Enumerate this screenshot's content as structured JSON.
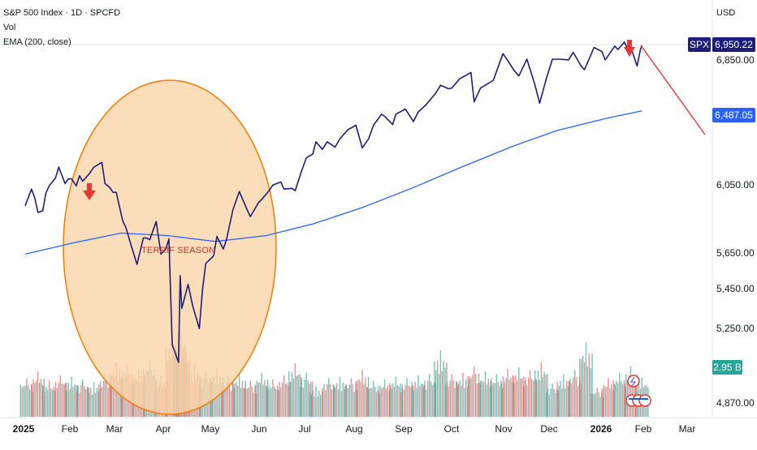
{
  "header": {
    "title": "S&P 500 Index · 1D · SPCFD",
    "vol_label": "Vol",
    "ema_label": "EMA (200, close)"
  },
  "currency": "USD",
  "badges": {
    "symbol": "SPX",
    "price": "6,950.22",
    "ema": "6,487.05",
    "volume": "2.95 B"
  },
  "colors": {
    "price_line": "#1c1e7a",
    "ema_line": "#2962ff",
    "vol_up": "#26a69a",
    "vol_down": "#ef5350",
    "circle_fill": "#fbd3a6",
    "circle_stroke": "#f57c00",
    "arrow": "#e53935",
    "projection": "#e53935"
  },
  "annotation": "TERRIF SEASON",
  "chart_data": {
    "type": "line",
    "title": "S&P 500 Index · 1D · SPCFD",
    "y_axis_ticks": [
      "6,850.00",
      "6,050.00",
      "5,650.00",
      "5,450.00",
      "5,250.00",
      "4,870.00"
    ],
    "y_axis_scale": "log",
    "x_axis_ticks": [
      "2025",
      "Feb",
      "Mar",
      "Apr",
      "May",
      "Jun",
      "Jul",
      "Aug",
      "Sep",
      "Oct",
      "Nov",
      "Dec",
      "2026",
      "Feb",
      "Mar"
    ],
    "series": [
      {
        "name": "SPX",
        "points": [
          [
            "2025-01-02",
            5870
          ],
          [
            "2025-01-06",
            5975
          ],
          [
            "2025-01-08",
            5920
          ],
          [
            "2025-01-10",
            5830
          ],
          [
            "2025-01-13",
            5840
          ],
          [
            "2025-01-15",
            5950
          ],
          [
            "2025-01-17",
            5995
          ],
          [
            "2025-01-21",
            6045
          ],
          [
            "2025-01-23",
            6115
          ],
          [
            "2025-01-27",
            6010
          ],
          [
            "2025-01-29",
            6040
          ],
          [
            "2025-01-31",
            6040
          ],
          [
            "2025-02-03",
            5995
          ],
          [
            "2025-02-05",
            6060
          ],
          [
            "2025-02-07",
            6025
          ],
          [
            "2025-02-11",
            6070
          ],
          [
            "2025-02-14",
            6115
          ],
          [
            "2025-02-19",
            6145
          ],
          [
            "2025-02-21",
            6010
          ],
          [
            "2025-02-24",
            5985
          ],
          [
            "2025-02-26",
            5955
          ],
          [
            "2025-02-28",
            5955
          ],
          [
            "2025-03-04",
            5780
          ],
          [
            "2025-03-06",
            5740
          ],
          [
            "2025-03-10",
            5610
          ],
          [
            "2025-03-13",
            5520
          ],
          [
            "2025-03-17",
            5675
          ],
          [
            "2025-03-19",
            5675
          ],
          [
            "2025-03-21",
            5665
          ],
          [
            "2025-03-25",
            5775
          ],
          [
            "2025-03-28",
            5580
          ],
          [
            "2025-03-31",
            5610
          ],
          [
            "2025-04-02",
            5670
          ],
          [
            "2025-04-04",
            5075
          ],
          [
            "2025-04-08",
            4980
          ],
          [
            "2025-04-09",
            5455
          ],
          [
            "2025-04-10",
            5270
          ],
          [
            "2025-04-14",
            5405
          ],
          [
            "2025-04-17",
            5280
          ],
          [
            "2025-04-21",
            5160
          ],
          [
            "2025-04-23",
            5375
          ],
          [
            "2025-04-25",
            5525
          ],
          [
            "2025-04-30",
            5570
          ],
          [
            "2025-05-02",
            5685
          ],
          [
            "2025-05-06",
            5610
          ],
          [
            "2025-05-08",
            5665
          ],
          [
            "2025-05-12",
            5845
          ],
          [
            "2025-05-16",
            5960
          ],
          [
            "2025-05-21",
            5845
          ],
          [
            "2025-05-23",
            5805
          ],
          [
            "2025-05-28",
            5890
          ],
          [
            "2025-05-30",
            5910
          ],
          [
            "2025-06-04",
            5970
          ],
          [
            "2025-06-06",
            6000
          ],
          [
            "2025-06-11",
            6020
          ],
          [
            "2025-06-13",
            5975
          ],
          [
            "2025-06-18",
            5980
          ],
          [
            "2025-06-20",
            5965
          ],
          [
            "2025-06-24",
            6090
          ],
          [
            "2025-06-27",
            6175
          ],
          [
            "2025-07-01",
            6200
          ],
          [
            "2025-07-03",
            6280
          ],
          [
            "2025-07-07",
            6230
          ],
          [
            "2025-07-10",
            6280
          ],
          [
            "2025-07-15",
            6245
          ],
          [
            "2025-07-18",
            6300
          ],
          [
            "2025-07-23",
            6360
          ],
          [
            "2025-07-28",
            6390
          ],
          [
            "2025-08-01",
            6240
          ],
          [
            "2025-08-05",
            6300
          ],
          [
            "2025-08-08",
            6390
          ],
          [
            "2025-08-13",
            6465
          ],
          [
            "2025-08-15",
            6450
          ],
          [
            "2025-08-20",
            6395
          ],
          [
            "2025-08-22",
            6465
          ],
          [
            "2025-08-28",
            6500
          ],
          [
            "2025-09-02",
            6415
          ],
          [
            "2025-09-05",
            6480
          ],
          [
            "2025-09-10",
            6530
          ],
          [
            "2025-09-16",
            6610
          ],
          [
            "2025-09-19",
            6665
          ],
          [
            "2025-09-24",
            6640
          ],
          [
            "2025-09-26",
            6645
          ],
          [
            "2025-10-01",
            6710
          ],
          [
            "2025-10-08",
            6755
          ],
          [
            "2025-10-10",
            6550
          ],
          [
            "2025-10-14",
            6645
          ],
          [
            "2025-10-17",
            6665
          ],
          [
            "2025-10-22",
            6700
          ],
          [
            "2025-10-28",
            6890
          ],
          [
            "2025-10-31",
            6840
          ],
          [
            "2025-11-04",
            6770
          ],
          [
            "2025-11-07",
            6730
          ],
          [
            "2025-11-12",
            6850
          ],
          [
            "2025-11-17",
            6670
          ],
          [
            "2025-11-20",
            6540
          ],
          [
            "2025-11-24",
            6705
          ],
          [
            "2025-11-28",
            6850
          ],
          [
            "2025-12-03",
            6850
          ],
          [
            "2025-12-08",
            6845
          ],
          [
            "2025-12-11",
            6900
          ],
          [
            "2025-12-16",
            6800
          ],
          [
            "2025-12-18",
            6775
          ],
          [
            "2025-12-22",
            6880
          ],
          [
            "2025-12-24",
            6935
          ],
          [
            "2025-12-29",
            6905
          ],
          [
            "2025-12-31",
            6845
          ],
          [
            "2026-01-06",
            6945
          ],
          [
            "2026-01-08",
            6920
          ],
          [
            "2026-01-12",
            6975
          ],
          [
            "2026-01-14",
            6925
          ],
          [
            "2026-01-16",
            6940
          ],
          [
            "2026-01-20",
            6800
          ],
          [
            "2026-01-22",
            6915
          ],
          [
            "2026-01-23",
            6950.22
          ]
        ]
      },
      {
        "name": "EMA (200, close)",
        "points": [
          [
            "2025-01-02",
            5580
          ],
          [
            "2025-02-03",
            5650
          ],
          [
            "2025-03-03",
            5705
          ],
          [
            "2025-04-01",
            5690
          ],
          [
            "2025-05-01",
            5655
          ],
          [
            "2025-06-02",
            5690
          ],
          [
            "2025-07-01",
            5760
          ],
          [
            "2025-08-01",
            5860
          ],
          [
            "2025-09-02",
            5985
          ],
          [
            "2025-10-01",
            6110
          ],
          [
            "2025-11-03",
            6250
          ],
          [
            "2025-12-01",
            6355
          ],
          [
            "2026-01-02",
            6440
          ],
          [
            "2026-01-23",
            6487.05
          ]
        ]
      },
      {
        "name": "Vol",
        "volume": [
          [
            "2025-01-03",
            2.9,
            "up"
          ],
          [
            "2025-01-10",
            3.4,
            "down"
          ],
          [
            "2025-01-17",
            2.7,
            "up"
          ],
          [
            "2025-01-24",
            3.1,
            "down"
          ],
          [
            "2025-01-31",
            3.0,
            "up"
          ],
          [
            "2025-02-07",
            2.8,
            "down"
          ],
          [
            "2025-02-14",
            2.6,
            "up"
          ],
          [
            "2025-02-21",
            3.2,
            "down"
          ],
          [
            "2025-02-28",
            4.1,
            "down"
          ],
          [
            "2025-03-07",
            3.8,
            "down"
          ],
          [
            "2025-03-14",
            3.6,
            "down"
          ],
          [
            "2025-03-21",
            4.3,
            "up"
          ],
          [
            "2025-03-28",
            3.1,
            "down"
          ],
          [
            "2025-04-04",
            6.1,
            "down"
          ],
          [
            "2025-04-09",
            6.5,
            "up"
          ],
          [
            "2025-04-11",
            5.2,
            "down"
          ],
          [
            "2025-04-18",
            3.9,
            "down"
          ],
          [
            "2025-04-25",
            3.4,
            "up"
          ],
          [
            "2025-05-02",
            3.6,
            "up"
          ],
          [
            "2025-05-09",
            3.0,
            "down"
          ],
          [
            "2025-05-16",
            3.2,
            "up"
          ],
          [
            "2025-05-23",
            2.7,
            "down"
          ],
          [
            "2025-05-30",
            3.3,
            "up"
          ],
          [
            "2025-06-06",
            2.8,
            "up"
          ],
          [
            "2025-06-13",
            3.1,
            "down"
          ],
          [
            "2025-06-20",
            4.0,
            "up"
          ],
          [
            "2025-06-27",
            3.3,
            "up"
          ],
          [
            "2025-07-03",
            2.3,
            "up"
          ],
          [
            "2025-07-11",
            2.9,
            "down"
          ],
          [
            "2025-07-18",
            3.0,
            "up"
          ],
          [
            "2025-07-25",
            2.9,
            "up"
          ],
          [
            "2025-08-01",
            3.5,
            "down"
          ],
          [
            "2025-08-08",
            2.7,
            "up"
          ],
          [
            "2025-08-15",
            2.8,
            "down"
          ],
          [
            "2025-08-22",
            3.0,
            "up"
          ],
          [
            "2025-08-29",
            2.9,
            "down"
          ],
          [
            "2025-09-05",
            3.1,
            "up"
          ],
          [
            "2025-09-12",
            3.2,
            "up"
          ],
          [
            "2025-09-19",
            5.0,
            "up"
          ],
          [
            "2025-09-26",
            3.2,
            "down"
          ],
          [
            "2025-10-03",
            3.3,
            "up"
          ],
          [
            "2025-10-10",
            3.8,
            "down"
          ],
          [
            "2025-10-17",
            3.4,
            "up"
          ],
          [
            "2025-10-24",
            3.2,
            "up"
          ],
          [
            "2025-10-31",
            3.6,
            "down"
          ],
          [
            "2025-11-07",
            3.7,
            "down"
          ],
          [
            "2025-11-14",
            3.5,
            "down"
          ],
          [
            "2025-11-21",
            4.1,
            "up"
          ],
          [
            "2025-11-28",
            2.5,
            "up"
          ],
          [
            "2025-12-05",
            3.2,
            "up"
          ],
          [
            "2025-12-12",
            3.5,
            "down"
          ],
          [
            "2025-12-19",
            5.6,
            "up"
          ],
          [
            "2025-12-26",
            2.2,
            "up"
          ],
          [
            "2026-01-02",
            2.9,
            "down"
          ],
          [
            "2026-01-09",
            3.3,
            "up"
          ],
          [
            "2026-01-16",
            3.8,
            "down"
          ],
          [
            "2026-01-23",
            2.95,
            "up"
          ]
        ]
      }
    ],
    "grid": false,
    "legend": "top-left"
  }
}
